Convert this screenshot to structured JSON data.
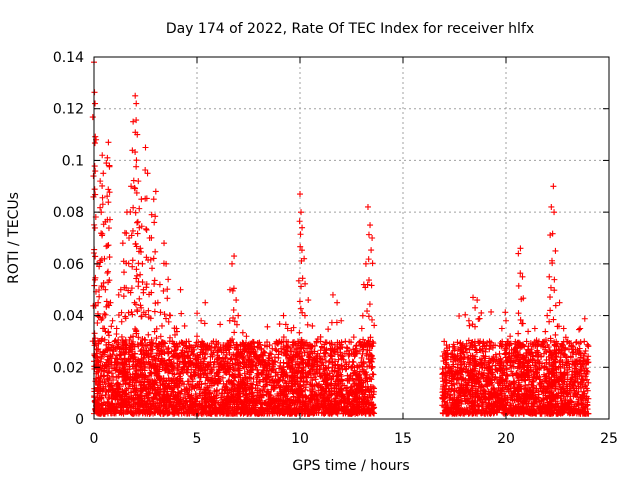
{
  "chart_data": {
    "type": "scatter",
    "title": "Day 174 of 2022, Rate Of TEC Index for receiver hlfx",
    "xlabel": "GPS time / hours",
    "ylabel": "ROTI / TECUs",
    "xlim": [
      0,
      25
    ],
    "ylim": [
      0,
      0.14
    ],
    "xticks": [
      "0",
      "5",
      "10",
      "15",
      "20",
      "25"
    ],
    "xtick_values": [
      0,
      5,
      10,
      15,
      20,
      25
    ],
    "yticks": [
      "0",
      "0.02",
      "0.04",
      "0.06",
      "0.08",
      "0.1",
      "0.12",
      "0.14"
    ],
    "ytick_values": [
      0,
      0.02,
      0.04,
      0.06,
      0.08,
      0.1,
      0.12,
      0.14
    ],
    "grid": true,
    "marker": "+",
    "color": "#ff0000",
    "series": [
      {
        "name": "ROTI",
        "x": [
          0.0,
          0.05,
          0.1,
          0.15,
          0.2,
          0.25,
          0.3,
          0.35,
          0.4,
          0.45,
          0.5,
          0.55,
          0.6,
          0.65,
          0.7,
          0.75,
          0.8,
          0.9,
          1.0,
          1.1,
          1.2,
          1.3,
          1.4,
          1.5,
          1.6,
          1.7,
          1.8,
          1.9,
          2.0,
          2.05,
          2.1,
          2.15,
          2.2,
          2.25,
          2.3,
          2.35,
          2.4,
          2.5,
          2.6,
          2.7,
          2.8,
          2.9,
          3.0,
          3.1,
          3.2,
          3.3,
          3.4,
          3.5,
          3.6,
          3.7,
          3.8,
          3.9,
          4.0,
          4.2,
          4.4,
          4.6,
          4.8,
          5.0,
          5.2,
          5.4,
          5.6,
          5.8,
          6.0,
          6.2,
          6.4,
          6.6,
          6.7,
          6.8,
          6.9,
          7.0,
          7.2,
          7.4,
          7.6,
          7.8,
          8.0,
          8.2,
          8.4,
          8.6,
          8.8,
          9.0,
          9.2,
          9.4,
          9.6,
          9.8,
          9.9,
          10.0,
          10.05,
          10.1,
          10.2,
          10.4,
          10.6,
          10.8,
          11.0,
          11.2,
          11.4,
          11.6,
          11.8,
          12.0,
          12.2,
          12.4,
          12.6,
          12.8,
          13.0,
          13.1,
          13.2,
          13.3,
          13.4,
          13.5,
          17.0,
          17.2,
          17.4,
          17.6,
          17.8,
          18.0,
          18.2,
          18.4,
          18.5,
          18.6,
          18.8,
          19.0,
          19.2,
          19.4,
          19.6,
          19.8,
          20.0,
          20.2,
          20.4,
          20.6,
          20.7,
          20.8,
          21.0,
          21.2,
          21.4,
          21.6,
          21.8,
          22.0,
          22.1,
          22.2,
          22.3,
          22.4,
          22.6,
          22.8,
          23.0,
          23.2,
          23.4,
          23.6,
          23.8,
          24.0
        ],
        "values": [
          0.138,
          0.122,
          0.108,
          0.06,
          0.045,
          0.059,
          0.092,
          0.08,
          0.102,
          0.095,
          0.035,
          0.05,
          0.099,
          0.101,
          0.107,
          0.098,
          0.045,
          0.038,
          0.03,
          0.035,
          0.048,
          0.05,
          0.068,
          0.072,
          0.08,
          0.07,
          0.09,
          0.115,
          0.125,
          0.122,
          0.11,
          0.092,
          0.074,
          0.066,
          0.085,
          0.06,
          0.05,
          0.105,
          0.095,
          0.07,
          0.079,
          0.085,
          0.088,
          0.045,
          0.052,
          0.036,
          0.068,
          0.06,
          0.054,
          0.04,
          0.03,
          0.028,
          0.035,
          0.05,
          0.036,
          0.03,
          0.025,
          0.032,
          0.038,
          0.045,
          0.028,
          0.03,
          0.026,
          0.022,
          0.027,
          0.05,
          0.06,
          0.063,
          0.046,
          0.04,
          0.024,
          0.032,
          0.028,
          0.025,
          0.022,
          0.021,
          0.028,
          0.025,
          0.027,
          0.03,
          0.04,
          0.035,
          0.022,
          0.025,
          0.03,
          0.087,
          0.08,
          0.074,
          0.062,
          0.046,
          0.036,
          0.03,
          0.03,
          0.024,
          0.022,
          0.048,
          0.045,
          0.038,
          0.03,
          0.025,
          0.022,
          0.02,
          0.035,
          0.052,
          0.06,
          0.082,
          0.075,
          0.07,
          0.03,
          0.02,
          0.025,
          0.018,
          0.022,
          0.024,
          0.038,
          0.047,
          0.043,
          0.046,
          0.041,
          0.026,
          0.03,
          0.024,
          0.022,
          0.035,
          0.038,
          0.032,
          0.027,
          0.064,
          0.066,
          0.055,
          0.03,
          0.025,
          0.035,
          0.03,
          0.028,
          0.04,
          0.055,
          0.082,
          0.09,
          0.065,
          0.045,
          0.035,
          0.03,
          0.027,
          0.025,
          0.035,
          0.03,
          0.022
        ]
      }
    ],
    "noise_floor": {
      "segments": [
        [
          0,
          13.6
        ],
        [
          16.9,
          24.0
        ]
      ],
      "typical_range": [
        0.002,
        0.03
      ]
    }
  }
}
